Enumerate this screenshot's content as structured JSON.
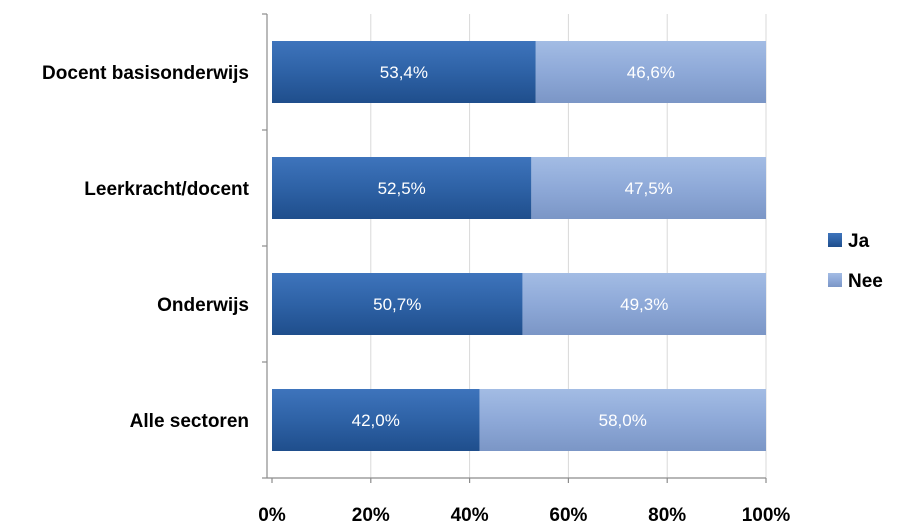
{
  "chart_data": {
    "type": "bar",
    "orientation": "horizontal",
    "stacked": "percent",
    "categories": [
      "Docent basisonderwijs",
      "Leerkracht/docent",
      "Onderwijs",
      "Alle sectoren"
    ],
    "series": [
      {
        "name": "Ja",
        "color": "#2E62A6",
        "values": [
          53.4,
          52.5,
          50.7,
          42.0
        ],
        "labels": [
          "53,4%",
          "52,5%",
          "50,7%",
          "42,0%"
        ]
      },
      {
        "name": "Nee",
        "color": "#8EA9D8",
        "values": [
          46.6,
          47.5,
          49.3,
          58.0
        ],
        "labels": [
          "46,6%",
          "47,5%",
          "49,3%",
          "58,0%"
        ]
      }
    ],
    "x_ticks": [
      "0%",
      "20%",
      "40%",
      "60%",
      "80%",
      "100%"
    ],
    "xlim": [
      0,
      100
    ],
    "grid": true,
    "legend_position": "right"
  }
}
